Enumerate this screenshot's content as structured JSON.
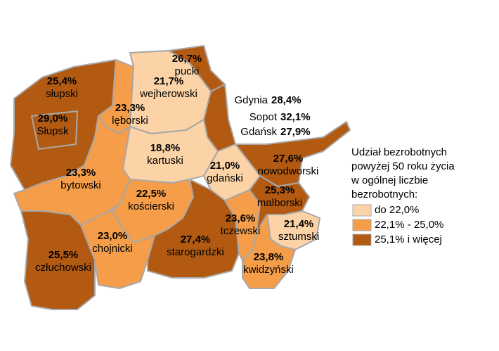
{
  "map": {
    "regions": [
      {
        "name": "słupski",
        "value": "25,4%",
        "color": "#b35a12"
      },
      {
        "name": "Słupsk",
        "value": "29,0%",
        "color": "#b35a12"
      },
      {
        "name": "lęborski",
        "value": "23,3%",
        "color": "#f59d48"
      },
      {
        "name": "wejherowski",
        "value": "21,7%",
        "color": "#fcd3a6"
      },
      {
        "name": "pucki",
        "value": "26,7%",
        "color": "#b35a12"
      },
      {
        "name": "kartuski",
        "value": "18,8%",
        "color": "#fcd3a6"
      },
      {
        "name": "gdański",
        "value": "21,0%",
        "color": "#fcd3a6"
      },
      {
        "name": "nowodworski",
        "value": "27,6%",
        "color": "#b35a12"
      },
      {
        "name": "bytowski",
        "value": "23,3%",
        "color": "#f59d48"
      },
      {
        "name": "kościerski",
        "value": "22,5%",
        "color": "#f59d48"
      },
      {
        "name": "człuchowski",
        "value": "25,5%",
        "color": "#b35a12"
      },
      {
        "name": "chojnicki",
        "value": "23,0%",
        "color": "#f59d48"
      },
      {
        "name": "starogardzki",
        "value": "27,4%",
        "color": "#b35a12"
      },
      {
        "name": "tczewski",
        "value": "23,6%",
        "color": "#f59d48"
      },
      {
        "name": "malborski",
        "value": "25,3%",
        "color": "#b35a12"
      },
      {
        "name": "sztumski",
        "value": "21,4%",
        "color": "#fcd3a6"
      },
      {
        "name": "kwidzyński",
        "value": "23,8%",
        "color": "#f59d48"
      }
    ],
    "trojmiasto_color": "#b35a12",
    "cities": [
      {
        "name": "Gdynia",
        "value": "28,4%"
      },
      {
        "name": "Sopot",
        "value": "32,1%"
      },
      {
        "name": "Gdańsk",
        "value": "27,9%"
      }
    ],
    "legend": {
      "title": [
        "Udział bezrobotnych",
        "powyżej 50 roku życia",
        "w ogólnej liczbie",
        "bezrobotnych:"
      ],
      "items": [
        {
          "label": "do 22,0%",
          "color": "#fcd3a6"
        },
        {
          "label": "22,1% - 25,0%",
          "color": "#f59d48"
        },
        {
          "label": "25,1% i więcej",
          "color": "#b35a12"
        }
      ]
    }
  }
}
